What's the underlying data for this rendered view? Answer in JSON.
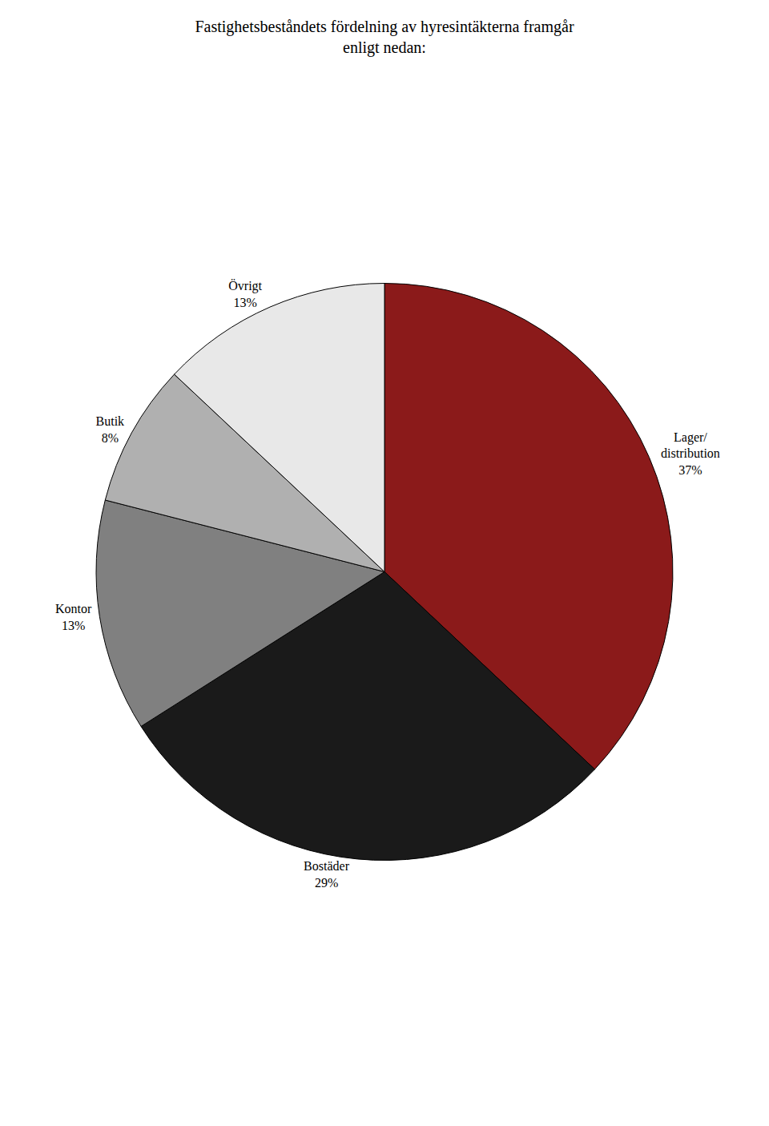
{
  "chart_data": {
    "type": "pie",
    "title": "Fastighetsbeståndets fördelning av hyresintäkterna framgår\nenligt nedan:",
    "categories": [
      "Lager/\ndistribution",
      "Bostäder",
      "Kontor",
      "Butik",
      "Övrigt"
    ],
    "values": [
      37,
      29,
      13,
      8,
      13
    ],
    "value_labels": [
      "37%",
      "29%",
      "13%",
      "8%",
      "13%"
    ],
    "colors": [
      "#8B1A1A",
      "#1a1a1a",
      "#808080",
      "#b0b0b0",
      "#e8e8e8"
    ],
    "data_labels": true
  }
}
